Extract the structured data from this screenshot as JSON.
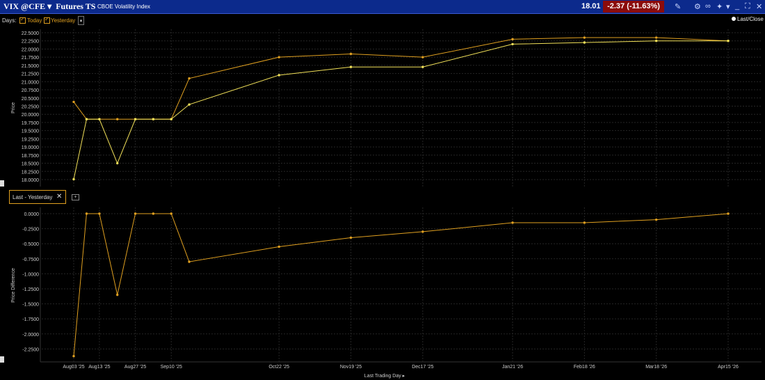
{
  "header": {
    "symbol": "VIX @CFE ▾",
    "title": "Futures TS",
    "description": "CBOE Volatility Index",
    "last": "18.01",
    "change": "-2.37 (-11.63%)"
  },
  "controls": {
    "days_label": "Days:",
    "today_label": "Today",
    "yesterday_label": "Yesterday",
    "legend_label": "Last/Close",
    "diff_tab_label": "Last - Yesterday"
  },
  "colors": {
    "today": "#e0a020",
    "yesterday": "#f3e25a",
    "grid": "#262626",
    "title_bg": "#0c2a8c"
  },
  "chart_data": [
    {
      "type": "line",
      "ylabel": "Price",
      "ylim": [
        18.0,
        22.5
      ],
      "yticks": [
        "22.5000",
        "22.2500",
        "22.0000",
        "21.7500",
        "21.5000",
        "21.2500",
        "21.0000",
        "20.7500",
        "20.5000",
        "20.2500",
        "20.0000",
        "19.7500",
        "19.5000",
        "19.2500",
        "19.0000",
        "18.7500",
        "18.5000",
        "18.2500",
        "18.0000"
      ],
      "x_categories": [
        "Aug03 '25",
        "Aug13 '25",
        "Aug27 '25",
        "Sep10 '25",
        "Oct22 '25",
        "Nov19 '25",
        "Dec17 '25",
        "Jan21 '26",
        "Feb18 '26",
        "Mar18 '26",
        "Apr15 '26"
      ],
      "series": [
        {
          "name": "Today",
          "points": [
            [
              "2025-08-03",
              18.01
            ],
            [
              "2025-08-08",
              19.85
            ],
            [
              "2025-08-13",
              19.85
            ],
            [
              "2025-08-20",
              18.5
            ],
            [
              "2025-08-27",
              19.85
            ],
            [
              "2025-09-03",
              19.85
            ],
            [
              "2025-09-10",
              19.85
            ],
            [
              "2025-09-17",
              20.3
            ],
            [
              "2025-10-22",
              21.2
            ],
            [
              "2025-11-19",
              21.45
            ],
            [
              "2025-12-17",
              21.45
            ],
            [
              "2026-01-21",
              22.15
            ],
            [
              "2026-02-18",
              22.2
            ],
            [
              "2026-03-18",
              22.25
            ],
            [
              "2026-04-15",
              22.25
            ]
          ]
        },
        {
          "name": "Yesterday",
          "points": [
            [
              "2025-08-03",
              20.38
            ],
            [
              "2025-08-08",
              19.85
            ],
            [
              "2025-08-13",
              19.85
            ],
            [
              "2025-08-20",
              19.85
            ],
            [
              "2025-08-27",
              19.85
            ],
            [
              "2025-09-03",
              19.85
            ],
            [
              "2025-09-10",
              19.85
            ],
            [
              "2025-09-17",
              21.1
            ],
            [
              "2025-10-22",
              21.75
            ],
            [
              "2025-11-19",
              21.85
            ],
            [
              "2025-12-17",
              21.75
            ],
            [
              "2026-01-21",
              22.3
            ],
            [
              "2026-02-18",
              22.35
            ],
            [
              "2026-03-18",
              22.35
            ],
            [
              "2026-04-15",
              22.25
            ]
          ]
        }
      ]
    },
    {
      "type": "line",
      "ylabel": "Price Difference",
      "xlabel": "Last Trading Day ▸",
      "ylim": [
        -2.35,
        0.0
      ],
      "yticks": [
        "0.0000",
        "-0.2500",
        "-0.5000",
        "-0.7500",
        "-1.0000",
        "-1.2500",
        "-1.5000",
        "-1.7500",
        "-2.0000",
        "-2.2500"
      ],
      "series": [
        {
          "name": "Last - Yesterday",
          "points": [
            [
              "2025-08-03",
              -2.37
            ],
            [
              "2025-08-08",
              0.0
            ],
            [
              "2025-08-13",
              0.0
            ],
            [
              "2025-08-20",
              -1.35
            ],
            [
              "2025-08-27",
              0.0
            ],
            [
              "2025-09-03",
              0.0
            ],
            [
              "2025-09-10",
              0.0
            ],
            [
              "2025-09-17",
              -0.8
            ],
            [
              "2025-10-22",
              -0.55
            ],
            [
              "2025-11-19",
              -0.4
            ],
            [
              "2025-12-17",
              -0.3
            ],
            [
              "2026-01-21",
              -0.15
            ],
            [
              "2026-02-18",
              -0.15
            ],
            [
              "2026-03-18",
              -0.1
            ],
            [
              "2026-04-15",
              0.0
            ]
          ]
        }
      ]
    }
  ]
}
